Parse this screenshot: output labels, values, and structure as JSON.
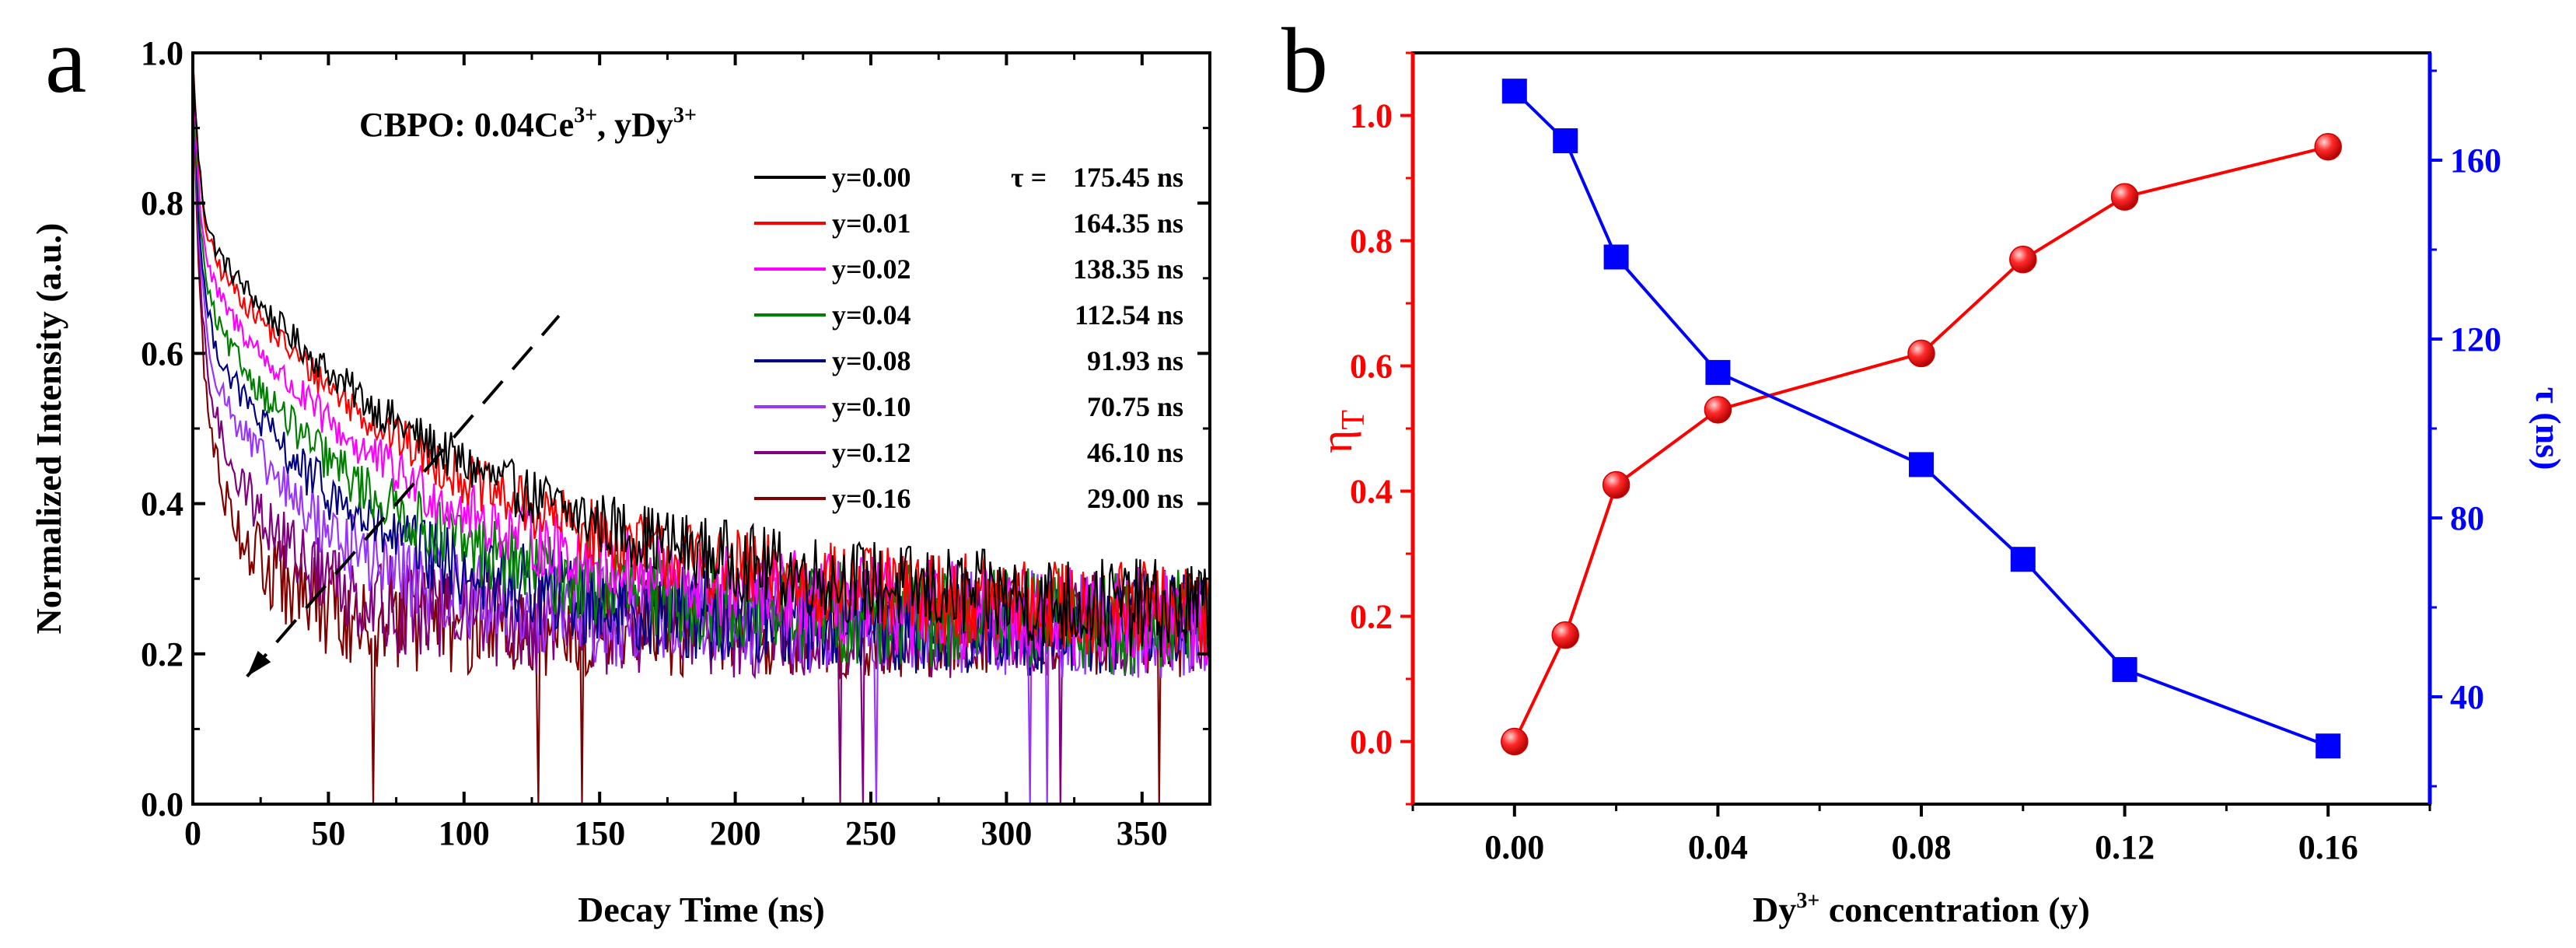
{
  "chart_data": [
    {
      "panel_label": "a",
      "type": "line",
      "title": "CBPO: 0.04Ce",
      "title_sup": "3+",
      "title_mid": ", yDy",
      "title_sup2": "3+",
      "xlabel": "Decay Time (ns)",
      "ylabel": "Normalized Intensity (a.u.)",
      "xlim": [
        0,
        375
      ],
      "ylim": [
        0,
        1.0
      ],
      "xticks": [
        0,
        50,
        100,
        150,
        200,
        250,
        300,
        350
      ],
      "yticks": [
        "0.0",
        "0.2",
        "0.4",
        "0.6",
        "0.8",
        "1.0"
      ],
      "floor": 0.24,
      "noise_spread": 0.06,
      "tau_prefix": "τ =",
      "series": [
        {
          "name": "y=0.00",
          "tau_label": "175.45 ns",
          "tau": 175.45,
          "color": "#000000"
        },
        {
          "name": "y=0.01",
          "tau_label": "164.35 ns",
          "tau": 164.35,
          "color": "#ff0000"
        },
        {
          "name": "y=0.02",
          "tau_label": "138.35 ns",
          "tau": 138.35,
          "color": "#ff00ff"
        },
        {
          "name": "y=0.04",
          "tau_label": "112.54 ns",
          "tau": 112.54,
          "color": "#008000"
        },
        {
          "name": "y=0.08",
          "tau_label": "91.93 ns",
          "tau": 91.93,
          "color": "#000080"
        },
        {
          "name": "y=0.10",
          "tau_label": "70.75 ns",
          "tau": 70.75,
          "color": "#9933ff"
        },
        {
          "name": "y=0.12",
          "tau_label": "46.10 ns",
          "tau": 46.1,
          "color": "#800080"
        },
        {
          "name": "y=0.16",
          "tau_label": "29.00 ns",
          "tau": 29.0,
          "color": "#800000"
        }
      ],
      "trend_arrow": {
        "from": [
          20,
          0.17
        ],
        "to": [
          135,
          0.65
        ]
      }
    },
    {
      "panel_label": "b",
      "type": "line",
      "xlabel_pre": "Dy",
      "xlabel_sup": "3+",
      "xlabel_post": " concentration (y)",
      "ylabel_left": "η",
      "ylabel_left_sub": "T",
      "ylabel_right": "τ (ns)",
      "x": [
        0.0,
        0.01,
        0.02,
        0.04,
        0.08,
        0.1,
        0.12,
        0.16
      ],
      "xlim": [
        -0.02,
        0.18
      ],
      "xticks": [
        "0.00",
        "0.04",
        "0.08",
        "0.12",
        "0.16"
      ],
      "ylim_left": [
        -0.1,
        1.1
      ],
      "yticks_left": [
        "0.0",
        "0.2",
        "0.4",
        "0.6",
        "0.8",
        "1.0"
      ],
      "ylim_right": [
        16,
        184
      ],
      "yticks_right": [
        "40",
        "80",
        "120",
        "160"
      ],
      "series": [
        {
          "name": "ηT",
          "axis": "left",
          "marker": "circle",
          "color": "#ff0000",
          "values": [
            0.0,
            0.17,
            0.41,
            0.53,
            0.62,
            0.77,
            0.87,
            0.95
          ]
        },
        {
          "name": "τ",
          "axis": "right",
          "marker": "square",
          "color": "#0000ff",
          "values": [
            175.45,
            164.35,
            138.35,
            112.54,
            91.93,
            70.75,
            46.1,
            29.0
          ]
        }
      ],
      "left_axis_color": "#ff0000",
      "right_axis_color": "#0000ff"
    }
  ]
}
